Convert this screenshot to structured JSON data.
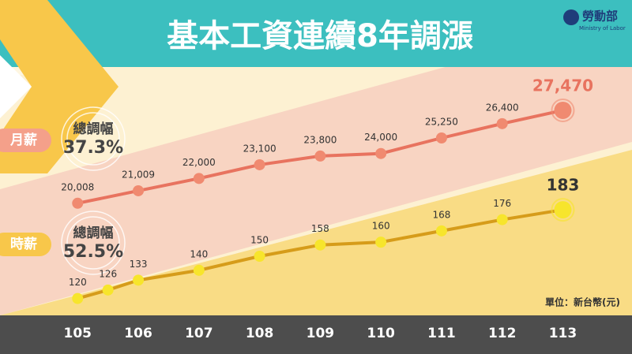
{
  "title": "基本工資連續8年調漲",
  "logo": {
    "name": "勞動部",
    "subtitle": "Ministry of Labor"
  },
  "chart_data": {
    "type": "line",
    "xlim": [
      103.72,
      114.14
    ],
    "xticks": [
      105,
      106,
      107,
      108,
      109,
      110,
      111,
      112,
      113
    ],
    "ylim": [
      11000,
      30000
    ],
    "y2lim": [
      108,
      276
    ],
    "series": [
      {
        "name": "月薪",
        "color": "#e8735f",
        "marker_color": "#f08a70",
        "x": [
          105,
          106,
          107,
          108,
          109,
          110,
          111,
          112,
          113
        ],
        "values": [
          20008,
          21009,
          22000,
          23100,
          23800,
          24000,
          25250,
          26400,
          27470
        ],
        "value_labels": [
          "20,008",
          "21,009",
          "22,000",
          "23,100",
          "23,800",
          "24,000",
          "25,250",
          "26,400",
          "27,470"
        ]
      },
      {
        "name": "時薪",
        "color": "#d69c1a",
        "marker_color": "#f7e52c",
        "axis": "y2",
        "x": [
          105,
          105.5,
          106,
          107,
          108,
          109,
          110,
          111,
          112,
          113
        ],
        "values": [
          120,
          126,
          133,
          140,
          150,
          158,
          160,
          168,
          176,
          183
        ]
      }
    ],
    "annotations": [
      {
        "label": "總調幅",
        "text": "37.3%"
      },
      {
        "label": "總調幅",
        "text": "52.5%"
      }
    ],
    "unit_note": "單位：新台幣(元)"
  }
}
